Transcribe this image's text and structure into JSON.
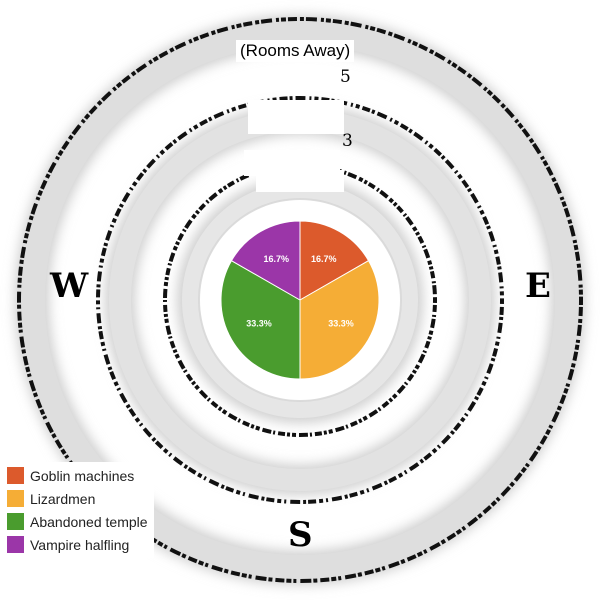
{
  "map": {
    "axis_title": "(Rooms Away)",
    "ring_numbers": [
      "5",
      "3"
    ],
    "directions": {
      "west": "W",
      "east": "E",
      "south": "S"
    }
  },
  "chart_data": {
    "type": "pie",
    "categories": [
      "Goblin machines",
      "Lizardmen",
      "Abandoned temple",
      "Vampire halfling"
    ],
    "values": [
      16.7,
      33.3,
      33.3,
      16.7
    ],
    "labels": [
      "16.7%",
      "33.3%",
      "33.3%",
      "16.7%"
    ],
    "colors": [
      "#dc5a2c",
      "#f5ad36",
      "#4a9c2e",
      "#9b36a8"
    ]
  },
  "legend": [
    {
      "label": "Goblin machines",
      "color": "#dc5a2c"
    },
    {
      "label": "Lizardmen",
      "color": "#f5ad36"
    },
    {
      "label": "Abandoned temple",
      "color": "#4a9c2e"
    },
    {
      "label": "Vampire halfling",
      "color": "#9b36a8"
    }
  ]
}
